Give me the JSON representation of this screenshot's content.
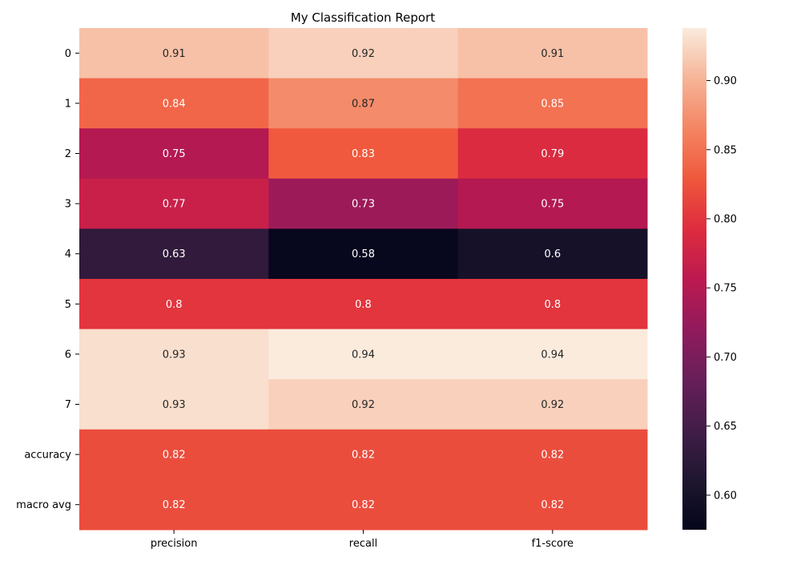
{
  "chart_data": {
    "type": "heatmap",
    "title": "My Classification Report",
    "columns": [
      "precision",
      "recall",
      "f1-score"
    ],
    "rows": [
      "0",
      "1",
      "2",
      "3",
      "4",
      "5",
      "6",
      "7",
      "accuracy",
      "macro avg"
    ],
    "values": [
      [
        0.91,
        0.92,
        0.91
      ],
      [
        0.84,
        0.87,
        0.85
      ],
      [
        0.75,
        0.83,
        0.79
      ],
      [
        0.77,
        0.73,
        0.75
      ],
      [
        0.63,
        0.58,
        0.6
      ],
      [
        0.8,
        0.8,
        0.8
      ],
      [
        0.93,
        0.94,
        0.94
      ],
      [
        0.93,
        0.92,
        0.92
      ],
      [
        0.82,
        0.82,
        0.82
      ],
      [
        0.82,
        0.82,
        0.82
      ]
    ],
    "colorbar": {
      "min": 0.575,
      "max": 0.938,
      "ticks": [
        "0.60",
        "0.65",
        "0.70",
        "0.75",
        "0.80",
        "0.85",
        "0.90"
      ],
      "colormap": "rocket"
    },
    "grid": false
  }
}
